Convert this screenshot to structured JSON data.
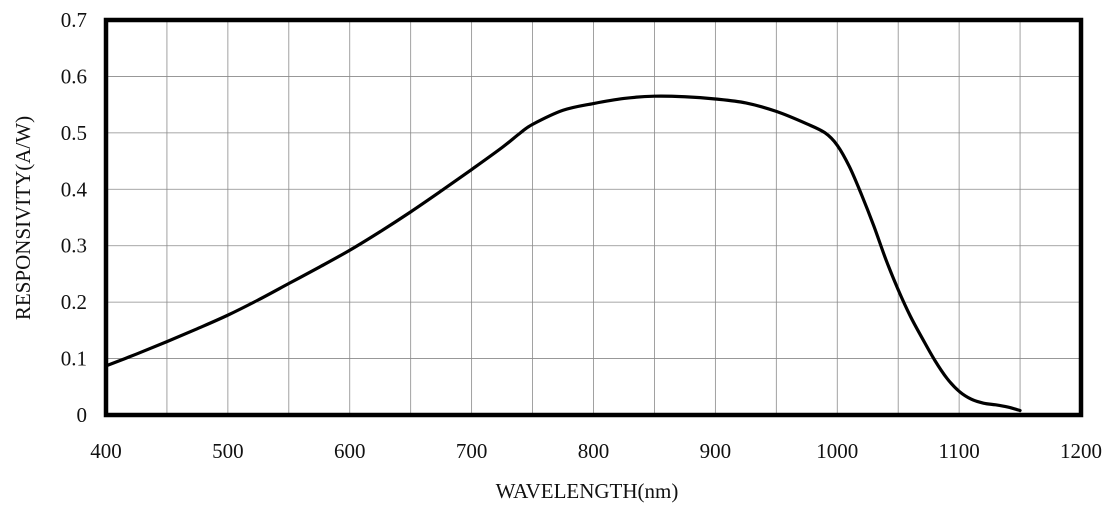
{
  "chart_data": {
    "type": "line",
    "title": "",
    "xlabel": "WAVELENGTH(nm)",
    "ylabel": "RESPONSIVITY(A/W)",
    "xlim": [
      400,
      1200
    ],
    "ylim": [
      0,
      0.7
    ],
    "x_ticks": [
      400,
      500,
      600,
      700,
      800,
      900,
      1000,
      1100,
      1200
    ],
    "y_ticks": [
      0,
      0.1,
      0.2,
      0.3,
      0.4,
      0.5,
      0.6,
      0.7
    ],
    "x_tick_labels": [
      "400",
      "500",
      "600",
      "700",
      "800",
      "900",
      "1000",
      "1100",
      "1200"
    ],
    "y_tick_labels": [
      "0",
      "0.1",
      "0.2",
      "0.3",
      "0.4",
      "0.5",
      "0.6",
      "0.7"
    ],
    "grid": true,
    "grid_x_step": 50,
    "grid_y_step": 0.1,
    "series": [
      {
        "color": "#000000",
        "x": [
          400,
          425,
          450,
          475,
          500,
          525,
          550,
          575,
          600,
          625,
          650,
          675,
          700,
          725,
          740,
          750,
          775,
          800,
          825,
          850,
          875,
          900,
          925,
          950,
          975,
          990,
          1000,
          1010,
          1020,
          1030,
          1040,
          1050,
          1060,
          1070,
          1080,
          1090,
          1100,
          1110,
          1120,
          1130,
          1140,
          1150
        ],
        "y": [
          0.087,
          0.108,
          0.13,
          0.153,
          0.177,
          0.204,
          0.233,
          0.262,
          0.292,
          0.325,
          0.36,
          0.397,
          0.435,
          0.474,
          0.5,
          0.515,
          0.54,
          0.552,
          0.561,
          0.565,
          0.564,
          0.56,
          0.553,
          0.538,
          0.516,
          0.5,
          0.478,
          0.44,
          0.39,
          0.335,
          0.275,
          0.222,
          0.175,
          0.135,
          0.097,
          0.065,
          0.042,
          0.028,
          0.021,
          0.018,
          0.014,
          0.008
        ]
      }
    ]
  }
}
